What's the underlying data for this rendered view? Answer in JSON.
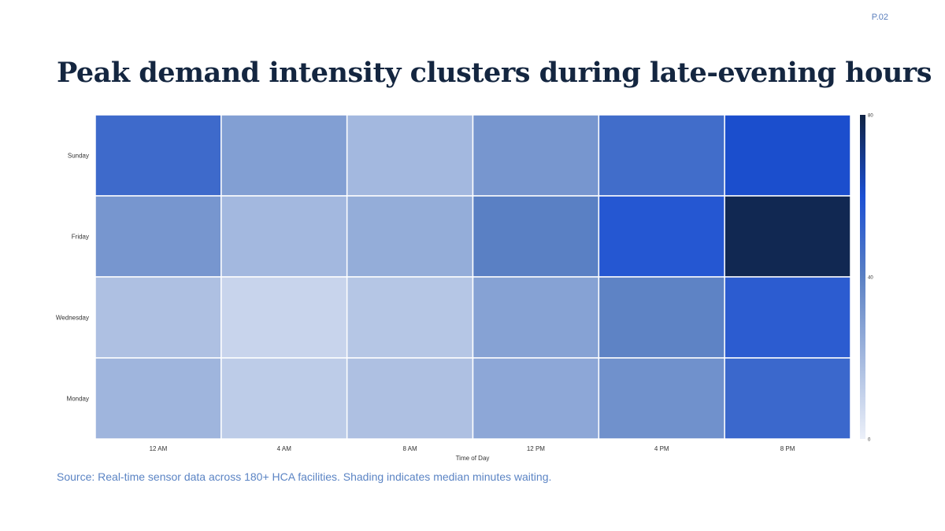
{
  "page_number": "P.02",
  "title": "Peak demand intensity clusters during late-evening hours",
  "source": "Source: Real-time sensor data across 180+ HCA facilities. Shading indicates median minutes waiting.",
  "chart_data": {
    "type": "heatmap",
    "title": "",
    "xlabel": "Time of Day",
    "ylabel": "",
    "x_categories": [
      "12 AM",
      "4 AM",
      "8 AM",
      "12 PM",
      "4 PM",
      "8 PM"
    ],
    "y_categories": [
      "Sunday",
      "Friday",
      "Wednesday",
      "Monday"
    ],
    "values": [
      [
        49,
        29,
        20,
        32,
        48,
        61
      ],
      [
        32,
        20,
        24,
        40,
        57,
        78
      ],
      [
        17,
        10,
        15,
        28,
        39,
        55
      ],
      [
        21,
        13,
        17,
        26,
        34,
        50
      ]
    ],
    "colorscale": {
      "min": 0,
      "max": 80,
      "ticks": [
        0,
        40,
        80
      ],
      "stops": [
        [
          0,
          "#ecf0f9"
        ],
        [
          0.5,
          "#5a80c4"
        ],
        [
          0.75,
          "#1c50d4"
        ],
        [
          1,
          "#102344"
        ]
      ]
    }
  }
}
